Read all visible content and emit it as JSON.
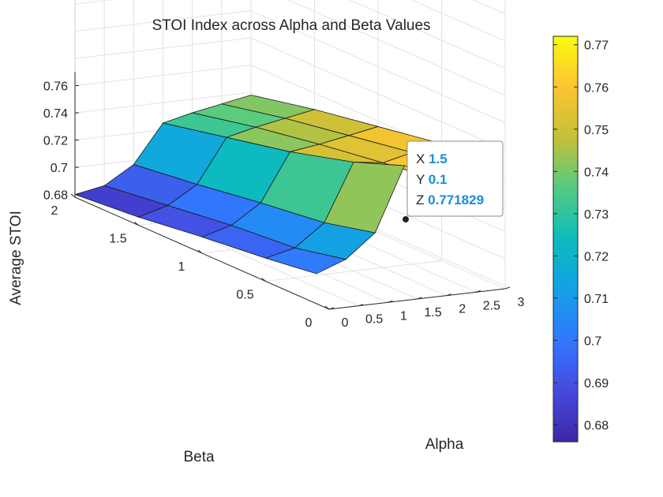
{
  "chart_data": {
    "type": "surface",
    "title": "STOI Index across Alpha and Beta Values",
    "xlabel": "Alpha",
    "ylabel": "Beta",
    "zlabel": "Average STOI",
    "alpha_ticks": [
      "0",
      "0.5",
      "1",
      "1.5",
      "2",
      "2.5",
      "3"
    ],
    "beta_ticks": [
      "0",
      "0.5",
      "1",
      "1.5",
      "2"
    ],
    "z_ticks": [
      "0.68",
      "0.7",
      "0.72",
      "0.74",
      "0.76"
    ],
    "colorbar_ticks": [
      "0.68",
      "0.69",
      "0.7",
      "0.71",
      "0.72",
      "0.73",
      "0.74",
      "0.75",
      "0.76",
      "0.77"
    ],
    "colorbar_range": [
      0.676,
      0.772
    ],
    "colormap": "parula",
    "alpha": [
      0,
      0.5,
      1,
      1.5,
      2,
      2.5,
      3
    ],
    "beta": [
      0.1,
      0.5,
      1,
      1.5,
      2
    ],
    "z": [
      [
        0.7,
        0.708,
        0.725,
        0.771829,
        0.76,
        0.765,
        0.77
      ],
      [
        0.695,
        0.7,
        0.716,
        0.758,
        0.755,
        0.76,
        0.764
      ],
      [
        0.69,
        0.696,
        0.71,
        0.745,
        0.748,
        0.752,
        0.756
      ],
      [
        0.684,
        0.69,
        0.703,
        0.735,
        0.74,
        0.744,
        0.748
      ],
      [
        0.68,
        0.684,
        0.697,
        0.725,
        0.73,
        0.734,
        0.738
      ]
    ],
    "datatip": {
      "x_label": "X",
      "x_value": "1.5",
      "y_label": "Y",
      "y_value": "0.1",
      "z_label": "Z",
      "z_value": "0.771829"
    }
  }
}
